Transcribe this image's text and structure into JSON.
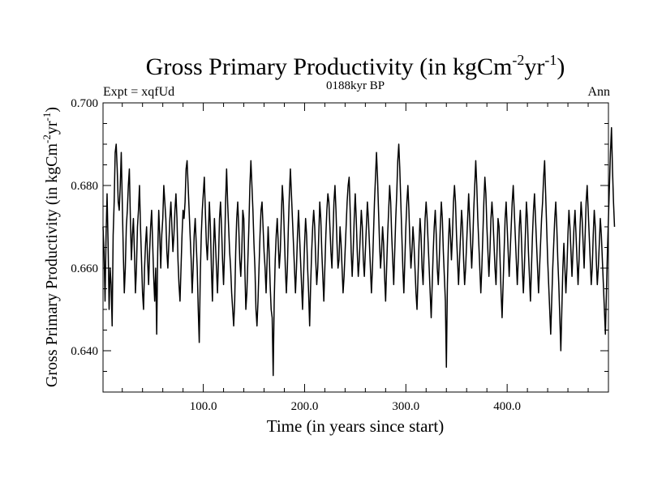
{
  "chart_data": {
    "type": "line",
    "title_main": "Gross Primary Productivity (in kgCm",
    "title_sup1": "-2",
    "title_mid": "yr",
    "title_sup2": "-1",
    "title_end": ")",
    "subtitle": "0188kyr BP",
    "left_label": "Expt = xqfUd",
    "right_label": "Ann",
    "xlabel": "Time (in years since start)",
    "ylabel_main": "Gross Primary Productivity (in kgCm",
    "ylabel_sup1": "-2",
    "ylabel_mid": "yr",
    "ylabel_sup2": "-1",
    "ylabel_end": ")",
    "xlim": [
      1,
      500
    ],
    "ylim": [
      0.63,
      0.7
    ],
    "xticks": [
      {
        "value": 100,
        "label": "100.0"
      },
      {
        "value": 200,
        "label": "200.0"
      },
      {
        "value": 300,
        "label": "300.0"
      },
      {
        "value": 400,
        "label": "400.0"
      }
    ],
    "yticks": [
      {
        "value": 0.64,
        "label": "0.640"
      },
      {
        "value": 0.66,
        "label": "0.660"
      },
      {
        "value": 0.68,
        "label": "0.680"
      },
      {
        "value": 0.7,
        "label": "0.700"
      }
    ],
    "series": [
      {
        "name": "Ann",
        "color": "#000000",
        "x_start": 1,
        "x_step": 1,
        "values": [
          0.67,
          0.664,
          0.652,
          0.668,
          0.678,
          0.666,
          0.65,
          0.66,
          0.656,
          0.646,
          0.668,
          0.676,
          0.688,
          0.69,
          0.684,
          0.676,
          0.674,
          0.68,
          0.688,
          0.676,
          0.664,
          0.654,
          0.66,
          0.67,
          0.674,
          0.68,
          0.684,
          0.672,
          0.662,
          0.668,
          0.672,
          0.664,
          0.654,
          0.66,
          0.67,
          0.674,
          0.68,
          0.67,
          0.662,
          0.654,
          0.65,
          0.66,
          0.666,
          0.67,
          0.662,
          0.656,
          0.664,
          0.67,
          0.674,
          0.666,
          0.658,
          0.652,
          0.66,
          0.644,
          0.664,
          0.674,
          0.668,
          0.66,
          0.668,
          0.672,
          0.68,
          0.676,
          0.672,
          0.664,
          0.66,
          0.666,
          0.672,
          0.676,
          0.67,
          0.664,
          0.668,
          0.674,
          0.678,
          0.672,
          0.662,
          0.656,
          0.652,
          0.66,
          0.668,
          0.674,
          0.672,
          0.676,
          0.684,
          0.686,
          0.68,
          0.674,
          0.668,
          0.662,
          0.654,
          0.66,
          0.668,
          0.672,
          0.666,
          0.66,
          0.65,
          0.642,
          0.658,
          0.668,
          0.674,
          0.678,
          0.682,
          0.674,
          0.666,
          0.662,
          0.668,
          0.676,
          0.67,
          0.66,
          0.652,
          0.664,
          0.672,
          0.666,
          0.66,
          0.654,
          0.662,
          0.672,
          0.676,
          0.67,
          0.662,
          0.656,
          0.664,
          0.676,
          0.684,
          0.676,
          0.67,
          0.664,
          0.66,
          0.654,
          0.65,
          0.646,
          0.652,
          0.664,
          0.672,
          0.676,
          0.67,
          0.662,
          0.658,
          0.664,
          0.674,
          0.672,
          0.66,
          0.65,
          0.654,
          0.662,
          0.67,
          0.68,
          0.686,
          0.68,
          0.674,
          0.666,
          0.66,
          0.65,
          0.646,
          0.652,
          0.66,
          0.668,
          0.674,
          0.676,
          0.67,
          0.664,
          0.66,
          0.654,
          0.662,
          0.67,
          0.664,
          0.656,
          0.65,
          0.648,
          0.634,
          0.652,
          0.662,
          0.668,
          0.672,
          0.666,
          0.66,
          0.664,
          0.672,
          0.68,
          0.676,
          0.668,
          0.66,
          0.654,
          0.66,
          0.67,
          0.678,
          0.684,
          0.678,
          0.672,
          0.666,
          0.66,
          0.654,
          0.66,
          0.668,
          0.674,
          0.668,
          0.662,
          0.656,
          0.65,
          0.658,
          0.666,
          0.672,
          0.668,
          0.66,
          0.654,
          0.646,
          0.656,
          0.664,
          0.67,
          0.674,
          0.67,
          0.662,
          0.656,
          0.66,
          0.668,
          0.676,
          0.672,
          0.664,
          0.658,
          0.652,
          0.66,
          0.668,
          0.674,
          0.678,
          0.676,
          0.67,
          0.664,
          0.66,
          0.668,
          0.676,
          0.68,
          0.674,
          0.666,
          0.66,
          0.662,
          0.67,
          0.666,
          0.66,
          0.654,
          0.658,
          0.664,
          0.67,
          0.676,
          0.68,
          0.682,
          0.674,
          0.664,
          0.658,
          0.664,
          0.672,
          0.678,
          0.672,
          0.664,
          0.658,
          0.662,
          0.668,
          0.674,
          0.67,
          0.662,
          0.658,
          0.664,
          0.67,
          0.676,
          0.672,
          0.666,
          0.66,
          0.654,
          0.66,
          0.668,
          0.676,
          0.682,
          0.688,
          0.682,
          0.674,
          0.666,
          0.66,
          0.664,
          0.67,
          0.666,
          0.658,
          0.652,
          0.66,
          0.668,
          0.674,
          0.68,
          0.676,
          0.668,
          0.662,
          0.656,
          0.664,
          0.672,
          0.678,
          0.686,
          0.69,
          0.684,
          0.676,
          0.668,
          0.66,
          0.654,
          0.662,
          0.67,
          0.676,
          0.68,
          0.674,
          0.666,
          0.66,
          0.664,
          0.67,
          0.666,
          0.66,
          0.654,
          0.65,
          0.658,
          0.666,
          0.672,
          0.668,
          0.66,
          0.656,
          0.664,
          0.672,
          0.676,
          0.672,
          0.666,
          0.66,
          0.654,
          0.648,
          0.656,
          0.664,
          0.67,
          0.674,
          0.668,
          0.66,
          0.656,
          0.662,
          0.67,
          0.676,
          0.672,
          0.664,
          0.658,
          0.652,
          0.636,
          0.656,
          0.666,
          0.672,
          0.668,
          0.662,
          0.668,
          0.676,
          0.68,
          0.676,
          0.668,
          0.662,
          0.656,
          0.662,
          0.668,
          0.674,
          0.67,
          0.662,
          0.656,
          0.66,
          0.666,
          0.672,
          0.678,
          0.672,
          0.666,
          0.66,
          0.666,
          0.674,
          0.68,
          0.686,
          0.68,
          0.672,
          0.666,
          0.66,
          0.654,
          0.66,
          0.668,
          0.676,
          0.682,
          0.678,
          0.67,
          0.664,
          0.658,
          0.664,
          0.672,
          0.676,
          0.672,
          0.666,
          0.66,
          0.656,
          0.664,
          0.672,
          0.67,
          0.662,
          0.654,
          0.648,
          0.656,
          0.664,
          0.672,
          0.676,
          0.67,
          0.664,
          0.658,
          0.664,
          0.67,
          0.676,
          0.68,
          0.674,
          0.668,
          0.662,
          0.656,
          0.662,
          0.67,
          0.674,
          0.668,
          0.66,
          0.654,
          0.66,
          0.668,
          0.676,
          0.672,
          0.664,
          0.658,
          0.652,
          0.66,
          0.668,
          0.674,
          0.678,
          0.672,
          0.666,
          0.66,
          0.654,
          0.66,
          0.666,
          0.672,
          0.676,
          0.682,
          0.686,
          0.678,
          0.67,
          0.662,
          0.656,
          0.65,
          0.644,
          0.652,
          0.66,
          0.666,
          0.672,
          0.676,
          0.67,
          0.662,
          0.656,
          0.648,
          0.64,
          0.65,
          0.66,
          0.666,
          0.66,
          0.654,
          0.66,
          0.668,
          0.674,
          0.67,
          0.664,
          0.658,
          0.664,
          0.67,
          0.674,
          0.668,
          0.662,
          0.656,
          0.662,
          0.67,
          0.676,
          0.672,
          0.666,
          0.66,
          0.668,
          0.676,
          0.68,
          0.674,
          0.668,
          0.662,
          0.656,
          0.66,
          0.668,
          0.674,
          0.67,
          0.662,
          0.656,
          0.66,
          0.666,
          0.672,
          0.668,
          0.662,
          0.656,
          0.65,
          0.644,
          0.654,
          0.664,
          0.672,
          0.68,
          0.688,
          0.694,
          0.684,
          0.676,
          0.67
        ]
      }
    ]
  }
}
